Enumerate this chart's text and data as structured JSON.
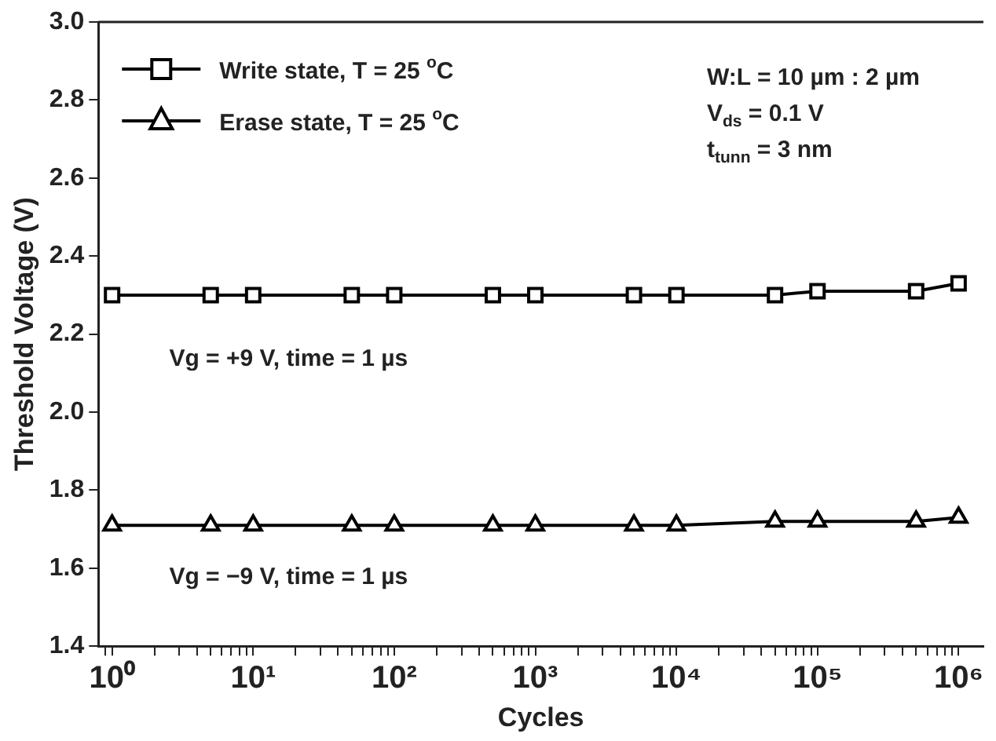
{
  "chart_data": {
    "type": "line",
    "xlabel": "Cycles",
    "ylabel": "Threshold Voltage (V)",
    "log": "x",
    "x": [
      1,
      5,
      10,
      50,
      100,
      500,
      1000,
      5000,
      10000,
      50000,
      100000,
      500000,
      1000000
    ],
    "series": [
      {
        "name": "Write state, T = 25 $^{o}$C",
        "color": "#000000",
        "marker": "square",
        "values": [
          2.3,
          2.3,
          2.3,
          2.3,
          2.3,
          2.3,
          2.3,
          2.3,
          2.3,
          2.3,
          2.31,
          2.31,
          2.33
        ]
      },
      {
        "name": "Erase state, T = 25 $^{o}$C",
        "color": "#000000",
        "marker": "triangle",
        "values": [
          1.71,
          1.71,
          1.71,
          1.71,
          1.71,
          1.71,
          1.71,
          1.71,
          1.71,
          1.72,
          1.72,
          1.72,
          1.73
        ]
      }
    ],
    "xlim": [
      0.8,
      1500000
    ],
    "xticks": [
      {
        "value": 0.9,
        "label": null
      },
      {
        "value": 1,
        "label": "10⁰"
      },
      {
        "value": 2,
        "label": null
      },
      {
        "value": 3,
        "label": null
      },
      {
        "value": 4,
        "label": null
      },
      {
        "value": 5,
        "label": null
      },
      {
        "value": 6,
        "label": null
      },
      {
        "value": 7,
        "label": null
      },
      {
        "value": 8,
        "label": null
      },
      {
        "value": 9,
        "label": null
      },
      {
        "value": 10,
        "label": "10¹"
      },
      {
        "value": 20,
        "label": null
      },
      {
        "value": 30,
        "label": null
      },
      {
        "value": 40,
        "label": null
      },
      {
        "value": 50,
        "label": null
      },
      {
        "value": 60,
        "label": null
      },
      {
        "value": 70,
        "label": null
      },
      {
        "value": 80,
        "label": null
      },
      {
        "value": 90,
        "label": null
      },
      {
        "value": 100,
        "label": "10²"
      },
      {
        "value": 200,
        "label": null
      },
      {
        "value": 300,
        "label": null
      },
      {
        "value": 400,
        "label": null
      },
      {
        "value": 500,
        "label": null
      },
      {
        "value": 600,
        "label": null
      },
      {
        "value": 700,
        "label": null
      },
      {
        "value": 800,
        "label": null
      },
      {
        "value": 900,
        "label": null
      },
      {
        "value": 1000,
        "label": "10³"
      },
      {
        "value": 2000,
        "label": null
      },
      {
        "value": 3000,
        "label": null
      },
      {
        "value": 4000,
        "label": null
      },
      {
        "value": 5000,
        "label": null
      },
      {
        "value": 6000,
        "label": null
      },
      {
        "value": 7000,
        "label": null
      },
      {
        "value": 8000,
        "label": null
      },
      {
        "value": 9000,
        "label": null
      },
      {
        "value": 10000,
        "label": "10⁴"
      },
      {
        "value": 20000,
        "label": null
      },
      {
        "value": 30000,
        "label": null
      },
      {
        "value": 40000,
        "label": null
      },
      {
        "value": 50000,
        "label": null
      },
      {
        "value": 60000,
        "label": null
      },
      {
        "value": 70000,
        "label": null
      },
      {
        "value": 80000,
        "label": null
      },
      {
        "value": 90000,
        "label": null
      },
      {
        "value": 100000,
        "label": "10⁵"
      },
      {
        "value": 200000,
        "label": null
      },
      {
        "value": 300000,
        "label": null
      },
      {
        "value": 400000,
        "label": null
      },
      {
        "value": 500000,
        "label": null
      },
      {
        "value": 600000,
        "label": null
      },
      {
        "value": 700000,
        "label": null
      },
      {
        "value": 800000,
        "label": null
      },
      {
        "value": 900000,
        "label": null
      },
      {
        "value": 1000000,
        "label": "10⁶"
      }
    ],
    "ylim": [
      1.4,
      3.0
    ],
    "yticks": [
      {
        "value": 1.4,
        "label": "1.4"
      },
      {
        "value": 1.6,
        "label": "1.6"
      },
      {
        "value": 1.8,
        "label": "1.8"
      },
      {
        "value": 2,
        "label": "2.0"
      },
      {
        "value": 2.2,
        "label": "2.2"
      },
      {
        "value": 2.4,
        "label": "2.4"
      },
      {
        "value": 2.6,
        "label": "2.6"
      },
      {
        "value": 2.8,
        "label": "2.8"
      },
      {
        "value": 3,
        "label": "3.0"
      }
    ],
    "grid": false,
    "legend": "top left",
    "line_style": "solid",
    "annotations": [
      "W:L = 10 µm : 2 µm",
      "V$_{ds}$ = 0.1 V",
      "t$_{tunn}$ = 3 nm",
      "Vg = +9 V, time = 1 µs",
      "Vg = −9 V, time = 1 µs"
    ]
  }
}
